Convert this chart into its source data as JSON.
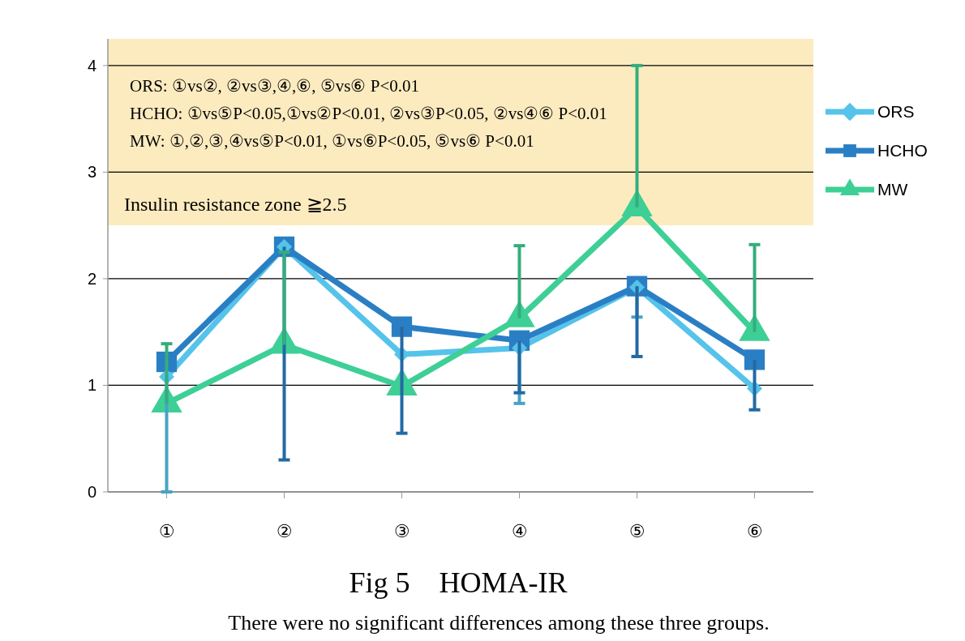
{
  "chart_data": {
    "type": "line",
    "title": "Fig 5    HOMA-IR",
    "subtitle": "There were no significant differences among these three groups.",
    "categories": [
      "①",
      "②",
      "③",
      "④",
      "⑤",
      "⑥"
    ],
    "series": [
      {
        "name": "ORS",
        "color": "#56c3ea",
        "marker": "diamond",
        "values": [
          1.08,
          2.3,
          1.29,
          1.35,
          1.92,
          0.97
        ],
        "errors": [
          [
            0,
            1.08
          ],
          null,
          null,
          [
            0.83,
            1.35
          ],
          [
            1.64,
            1.92
          ],
          null
        ]
      },
      {
        "name": "HCHO",
        "color": "#2a7fc4",
        "marker": "square",
        "values": [
          1.22,
          2.3,
          1.55,
          1.42,
          1.93,
          1.24
        ],
        "errors": [
          null,
          [
            0.3,
            2.3
          ],
          [
            0.55,
            1.55
          ],
          [
            0.93,
            1.42
          ],
          [
            1.27,
            1.93
          ],
          [
            0.77,
            1.24
          ]
        ]
      },
      {
        "name": "MW",
        "color": "#3ecf96",
        "marker": "triangle",
        "values": [
          0.83,
          1.38,
          0.99,
          1.63,
          2.67,
          1.5
        ],
        "errors": [
          [
            0.83,
            1.39
          ],
          [
            1.38,
            2.25
          ],
          null,
          [
            1.63,
            2.31
          ],
          [
            2.67,
            4.0
          ],
          [
            1.5,
            2.32
          ]
        ]
      }
    ],
    "ylim": [
      0,
      4.25
    ],
    "yticks": [
      0,
      1,
      2,
      3,
      4
    ],
    "grid": "y",
    "legend": "right",
    "line_style": "solid",
    "bands": [
      {
        "axis": "y",
        "from": 2.5,
        "to": 4.25,
        "label": "Insulin resistance zone ≧2.5",
        "color": "#fdebc0"
      }
    ],
    "annotations": [
      "ORS: ①vs②, ②vs③,④,⑥, ⑤vs⑥ P<0.01",
      "HCHO: ①vs⑤P<0.05,①vs②P<0.01, ②vs③P<0.05, ②vs④⑥ P<0.01",
      "MW: ①,②,③,④vs⑤P<0.01, ①vs⑥P<0.05, ⑤vs⑥ P<0.01"
    ]
  }
}
